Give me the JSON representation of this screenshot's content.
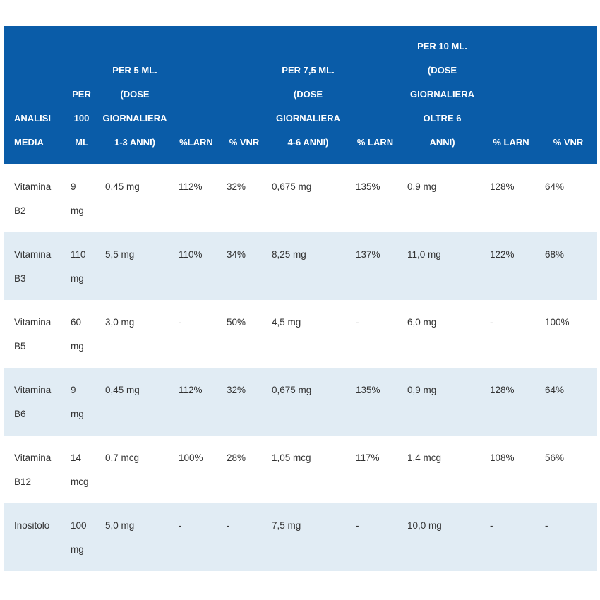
{
  "table": {
    "headers": [
      [
        "ANALISI",
        "MEDIA"
      ],
      [
        "PER",
        "100",
        "ML"
      ],
      [
        "PER 5 ML.",
        "(DOSE",
        "GIORNALIERA",
        "1-3 ANNI)"
      ],
      [
        "%LARN"
      ],
      [
        "% VNR"
      ],
      [
        "PER 7,5 ML.",
        "(DOSE",
        "GIORNALIERA",
        "4-6 ANNI)"
      ],
      [
        "% LARN"
      ],
      [
        "PER 10 ML.",
        "(DOSE",
        "GIORNALIERA",
        "OLTRE 6",
        "ANNI)"
      ],
      [
        "% LARN"
      ],
      [
        "% VNR"
      ]
    ],
    "rows": [
      [
        [
          "Vitamina",
          "B2"
        ],
        [
          "9",
          "mg"
        ],
        [
          "0,45 mg"
        ],
        [
          "112%"
        ],
        [
          "32%"
        ],
        [
          "0,675 mg"
        ],
        [
          "135%"
        ],
        [
          "0,9 mg"
        ],
        [
          "128%"
        ],
        [
          "64%"
        ]
      ],
      [
        [
          "Vitamina",
          "B3"
        ],
        [
          "110",
          "mg"
        ],
        [
          "5,5 mg"
        ],
        [
          "110%"
        ],
        [
          "34%"
        ],
        [
          "8,25 mg"
        ],
        [
          "137%"
        ],
        [
          "11,0 mg"
        ],
        [
          "122%"
        ],
        [
          "68%"
        ]
      ],
      [
        [
          "Vitamina",
          "B5"
        ],
        [
          "60",
          "mg"
        ],
        [
          "3,0 mg"
        ],
        [
          "-"
        ],
        [
          "50%"
        ],
        [
          "4,5 mg"
        ],
        [
          "-"
        ],
        [
          "6,0 mg"
        ],
        [
          "-"
        ],
        [
          "100%"
        ]
      ],
      [
        [
          "Vitamina",
          "B6"
        ],
        [
          "9",
          "mg"
        ],
        [
          "0,45 mg"
        ],
        [
          "112%"
        ],
        [
          "32%"
        ],
        [
          "0,675 mg"
        ],
        [
          "135%"
        ],
        [
          "0,9 mg"
        ],
        [
          "128%"
        ],
        [
          "64%"
        ]
      ],
      [
        [
          "Vitamina",
          "B12"
        ],
        [
          "14",
          "mcg"
        ],
        [
          "0,7 mcg"
        ],
        [
          "100%"
        ],
        [
          "28%"
        ],
        [
          "1,05 mcg"
        ],
        [
          "117%"
        ],
        [
          "1,4 mcg"
        ],
        [
          "108%"
        ],
        [
          "56%"
        ]
      ],
      [
        [
          "Inositolo"
        ],
        [
          "100",
          "mg"
        ],
        [
          "5,0 mg"
        ],
        [
          "-"
        ],
        [
          "-"
        ],
        [
          "7,5 mg"
        ],
        [
          "-"
        ],
        [
          "10,0 mg"
        ],
        [
          "-"
        ],
        [
          "-"
        ]
      ]
    ]
  },
  "colors": {
    "header_bg": "#0a5ca8",
    "header_text": "#ffffff",
    "stripe_bg": "#e1ecf4",
    "body_text": "#333333"
  }
}
